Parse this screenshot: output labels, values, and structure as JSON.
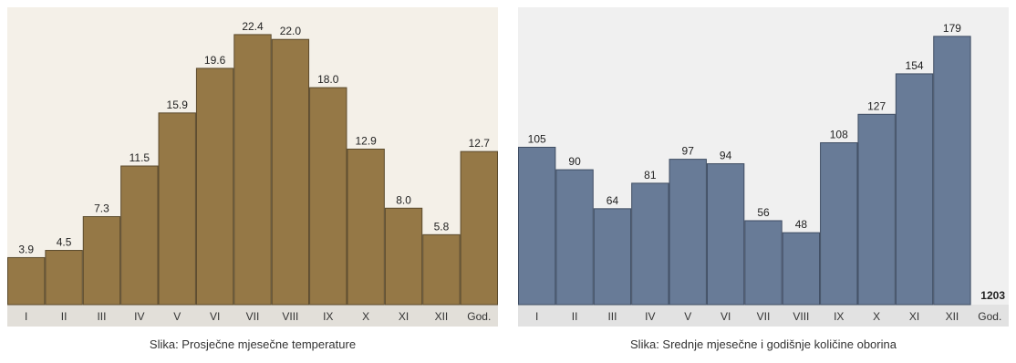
{
  "chart_data": [
    {
      "type": "bar",
      "categories": [
        "I",
        "II",
        "III",
        "IV",
        "V",
        "VI",
        "VII",
        "VIII",
        "IX",
        "X",
        "XI",
        "XII",
        "God."
      ],
      "values": [
        3.9,
        4.5,
        7.3,
        11.5,
        15.9,
        19.6,
        22.4,
        22.0,
        18.0,
        12.9,
        8.0,
        5.8,
        12.7
      ],
      "value_labels": [
        "3.9",
        "4.5",
        "7.3",
        "11.5",
        "15.9",
        "19.6",
        "22.4",
        "22.0",
        "18.0",
        "12.9",
        "8.0",
        "5.8",
        "12.7"
      ],
      "title": "",
      "xlabel": "",
      "ylabel": "",
      "ylim": [
        0,
        23
      ],
      "grid": false,
      "colors": {
        "bar": "#957846",
        "bar_stroke": "#5b4a2c",
        "background": "#f4f0e8",
        "axis_strip": "#e2dfd9"
      }
    },
    {
      "type": "bar",
      "categories": [
        "I",
        "II",
        "III",
        "IV",
        "V",
        "VI",
        "VII",
        "VIII",
        "IX",
        "X",
        "XI",
        "XII",
        "God."
      ],
      "values": [
        105,
        90,
        64,
        81,
        97,
        94,
        56,
        48,
        108,
        127,
        154,
        179,
        null
      ],
      "value_labels": [
        "105",
        "90",
        "64",
        "81",
        "97",
        "94",
        "56",
        "48",
        "108",
        "127",
        "154",
        "179",
        ""
      ],
      "annual_total": "1203",
      "title": "",
      "xlabel": "",
      "ylabel": "",
      "ylim": [
        0,
        185
      ],
      "grid": false,
      "colors": {
        "bar": "#687b97",
        "bar_stroke": "#3f4d63",
        "background": "#f0f0f0",
        "axis_strip": "#e2e2e2"
      }
    }
  ],
  "captions": {
    "temperature": "Slika: Prosječne mjesečne temperature",
    "precipitation": "Slika: Srednje mjesečne i godišnje količine oborina"
  }
}
